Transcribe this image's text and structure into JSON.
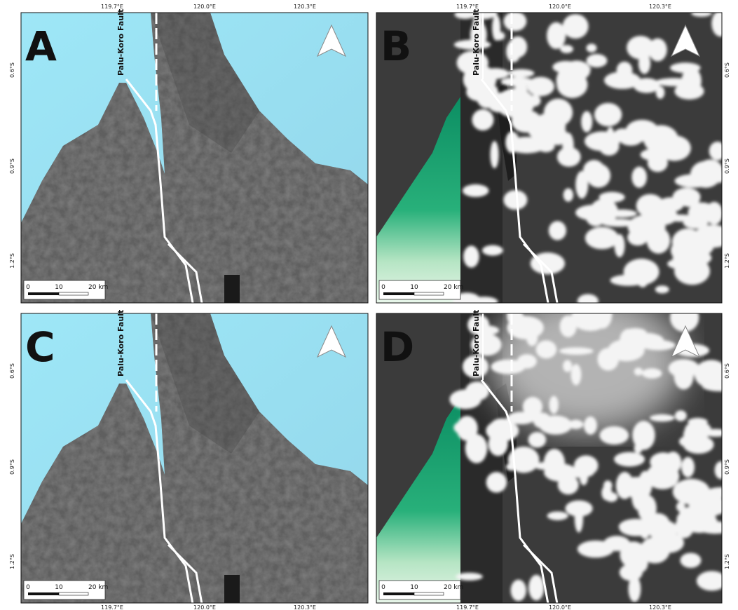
{
  "panels": [
    {
      "label": "A",
      "fault_label": "Palu-Koro Fault"
    },
    {
      "label": "B",
      "fault_label": "Palu-Koro Fault"
    },
    {
      "label": "C",
      "fault_label": "Palu-Koro Fault"
    },
    {
      "label": "D",
      "fault_label": "Palu-Koro Fault"
    }
  ],
  "scale_bar": {
    "ticks": [
      "0",
      "10",
      "20 km"
    ]
  },
  "longitude_labels": [
    "119.7°E",
    "120.0°E",
    "120.3°E"
  ],
  "latitude_labels": [
    "0.6°S",
    "0.9°S",
    "1.2°S"
  ]
}
